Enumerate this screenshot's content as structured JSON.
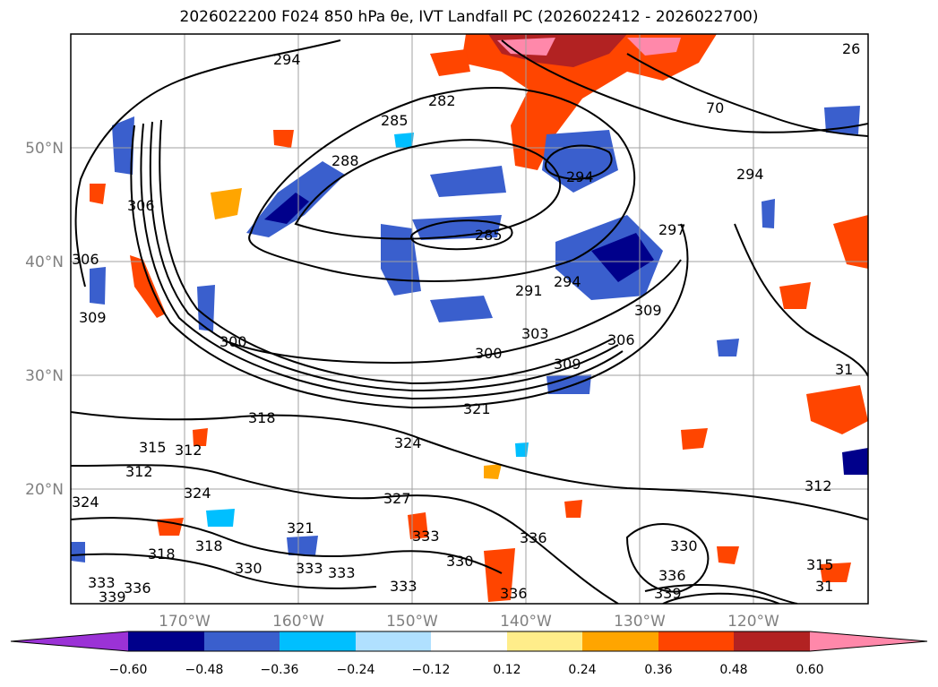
{
  "title": "2026022200 F024 850 hPa θe, IVT Landfall PC (2026022412 - 2026022700)",
  "map": {
    "lon_ticks": [
      "170°W",
      "160°W",
      "150°W",
      "140°W",
      "130°W",
      "120°W"
    ],
    "lat_ticks": [
      "50°N",
      "40°N",
      "30°N",
      "20°N"
    ],
    "contour_labels": [
      {
        "text": "294",
        "region": "north-west"
      },
      {
        "text": "285",
        "region": "north"
      },
      {
        "text": "282",
        "region": "north"
      },
      {
        "text": "288",
        "region": "north"
      },
      {
        "text": "294",
        "region": "gulf-of-alaska"
      },
      {
        "text": "285",
        "region": "center"
      },
      {
        "text": "297",
        "region": "north-east"
      },
      {
        "text": "291",
        "region": "center"
      },
      {
        "text": "294",
        "region": "center"
      },
      {
        "text": "309",
        "region": "east"
      },
      {
        "text": "306",
        "region": "east"
      },
      {
        "text": "303",
        "region": "center"
      },
      {
        "text": "300",
        "region": "center"
      },
      {
        "text": "309",
        "region": "center"
      },
      {
        "text": "300",
        "region": "west"
      },
      {
        "text": "306",
        "region": "west"
      },
      {
        "text": "306",
        "region": "far-west"
      },
      {
        "text": "309",
        "region": "far-west"
      },
      {
        "text": "321",
        "region": "center"
      },
      {
        "text": "318",
        "region": "west"
      },
      {
        "text": "324",
        "region": "center"
      },
      {
        "text": "315",
        "region": "south-west"
      },
      {
        "text": "312",
        "region": "south-west"
      },
      {
        "text": "312",
        "region": "south-west"
      },
      {
        "text": "324",
        "region": "south-west"
      },
      {
        "text": "324",
        "region": "far-south-west"
      },
      {
        "text": "327",
        "region": "south"
      },
      {
        "text": "321",
        "region": "south"
      },
      {
        "text": "318",
        "region": "south-west"
      },
      {
        "text": "318",
        "region": "south-west"
      },
      {
        "text": "330",
        "region": "south-west"
      },
      {
        "text": "333",
        "region": "south"
      },
      {
        "text": "333",
        "region": "south"
      },
      {
        "text": "333",
        "region": "south"
      },
      {
        "text": "333",
        "region": "south-west"
      },
      {
        "text": "336",
        "region": "south-west"
      },
      {
        "text": "339",
        "region": "south-west"
      },
      {
        "text": "333",
        "region": "south"
      },
      {
        "text": "336",
        "region": "south"
      },
      {
        "text": "336",
        "region": "south"
      },
      {
        "text": "330",
        "region": "south"
      },
      {
        "text": "330",
        "region": "south-east"
      },
      {
        "text": "336",
        "region": "south-east"
      },
      {
        "text": "339",
        "region": "south-east"
      },
      {
        "text": "312",
        "region": "south-east"
      },
      {
        "text": "315",
        "region": "south-east"
      },
      {
        "text": "31",
        "region": "far-south-east"
      },
      {
        "text": "31",
        "region": "east"
      },
      {
        "text": "26",
        "region": "north-east"
      },
      {
        "text": "70",
        "region": "north-east"
      },
      {
        "text": "294",
        "region": "north-east"
      }
    ]
  },
  "colorbar": {
    "ticks": [
      "−0.60",
      "−0.48",
      "−0.36",
      "−0.24",
      "−0.12",
      "0.12",
      "0.24",
      "0.36",
      "0.48",
      "0.60"
    ],
    "colors": [
      "#9b32d6",
      "#00008b",
      "#3a5fcd",
      "#00bfff",
      "#b0e0ff",
      "#ffffff",
      "#ffed8a",
      "#ffa500",
      "#ff4500",
      "#b22222",
      "#ff88aa"
    ]
  }
}
